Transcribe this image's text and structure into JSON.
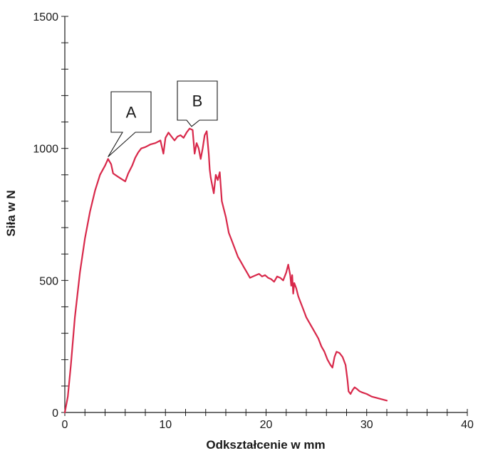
{
  "chart_data": {
    "type": "line",
    "title": "",
    "xlabel": "Odkształcenie w mm",
    "ylabel": "Siła w N",
    "xlim": [
      0,
      40
    ],
    "ylim": [
      0,
      1500
    ],
    "x_ticks": [
      "0",
      "10",
      "20",
      "30",
      "40"
    ],
    "y_ticks": [
      "0",
      "500",
      "1000",
      "1500"
    ],
    "x_minor_step": 2,
    "y_minor_step": 100,
    "grid": false,
    "color": "#d8284a",
    "annotations": [
      {
        "label": "A",
        "x": 4.3,
        "y": 960
      },
      {
        "label": "B",
        "x": 12.6,
        "y": 1075
      }
    ],
    "series": [
      {
        "x": [
          0,
          0.3,
          0.6,
          1.0,
          1.5,
          2.0,
          2.5,
          3.0,
          3.5,
          4.0,
          4.3,
          4.6,
          4.8,
          5.2,
          5.6,
          6.0,
          6.3,
          6.7,
          7.0,
          7.3,
          7.6,
          8.0,
          8.5,
          9.0,
          9.5,
          9.8,
          10.0,
          10.3,
          10.6,
          10.9,
          11.2,
          11.5,
          11.8,
          12.1,
          12.4,
          12.7,
          12.9,
          13.1,
          13.3,
          13.5,
          13.7,
          13.9,
          14.1,
          14.3,
          14.4,
          14.5,
          14.6,
          14.8,
          15.0,
          15.2,
          15.4,
          15.6,
          15.8,
          16.0,
          16.3,
          16.6,
          16.9,
          17.2,
          17.5,
          17.8,
          18.1,
          18.4,
          18.7,
          19.0,
          19.3,
          19.6,
          19.9,
          20.2,
          20.5,
          20.8,
          21.1,
          21.4,
          21.7,
          22.0,
          22.2,
          22.4,
          22.5,
          22.6,
          22.7,
          22.8,
          23.0,
          23.2,
          23.4,
          23.6,
          23.8,
          24.0,
          24.3,
          24.6,
          24.9,
          25.2,
          25.5,
          25.8,
          26.1,
          26.4,
          26.6,
          26.8,
          27.0,
          27.3,
          27.6,
          27.9,
          28.1,
          28.2,
          28.4,
          28.6,
          28.8,
          29.0,
          29.3,
          29.6,
          30.0,
          30.5,
          31.0,
          31.5,
          32.0
        ],
        "y": [
          0,
          60,
          180,
          360,
          530,
          660,
          760,
          840,
          900,
          935,
          960,
          940,
          905,
          895,
          885,
          875,
          905,
          935,
          965,
          985,
          1000,
          1005,
          1015,
          1020,
          1030,
          980,
          1040,
          1060,
          1045,
          1030,
          1045,
          1050,
          1040,
          1060,
          1075,
          1070,
          980,
          1020,
          1000,
          960,
          1000,
          1050,
          1065,
          980,
          920,
          890,
          870,
          830,
          900,
          880,
          910,
          800,
          770,
          740,
          680,
          650,
          620,
          590,
          570,
          550,
          530,
          510,
          515,
          520,
          525,
          515,
          520,
          510,
          505,
          495,
          515,
          510,
          500,
          530,
          560,
          520,
          480,
          520,
          450,
          490,
          470,
          440,
          420,
          400,
          380,
          360,
          340,
          320,
          300,
          280,
          250,
          230,
          200,
          180,
          170,
          210,
          230,
          225,
          210,
          180,
          120,
          80,
          70,
          85,
          95,
          90,
          80,
          75,
          70,
          60,
          55,
          50,
          45
        ]
      }
    ]
  }
}
